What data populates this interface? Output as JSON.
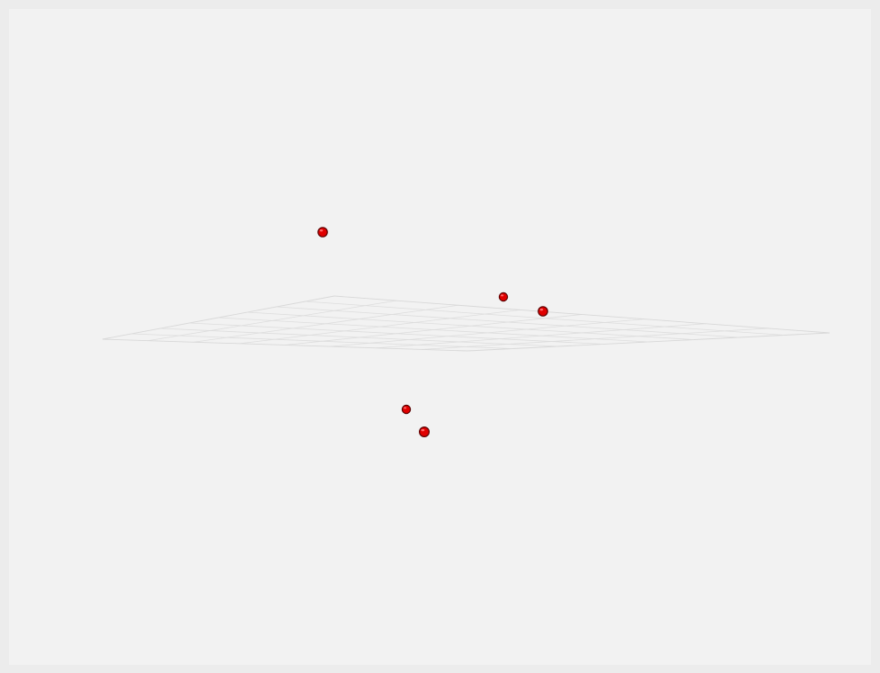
{
  "viewer": {
    "background_color": "#f2f2f2",
    "frame_color": "#ececec",
    "grid_color": "#dddddd",
    "marker_color": "#e00000",
    "marker_outline_color": "#5a0000"
  },
  "scene": {
    "ground_grid": {
      "visible": true,
      "divisions_u": 8,
      "divisions_v": 8
    },
    "markers": [
      {
        "id": "marker-1",
        "label": ""
      },
      {
        "id": "marker-2",
        "label": ""
      },
      {
        "id": "marker-3",
        "label": ""
      },
      {
        "id": "marker-4",
        "label": ""
      },
      {
        "id": "marker-5",
        "label": ""
      }
    ]
  }
}
